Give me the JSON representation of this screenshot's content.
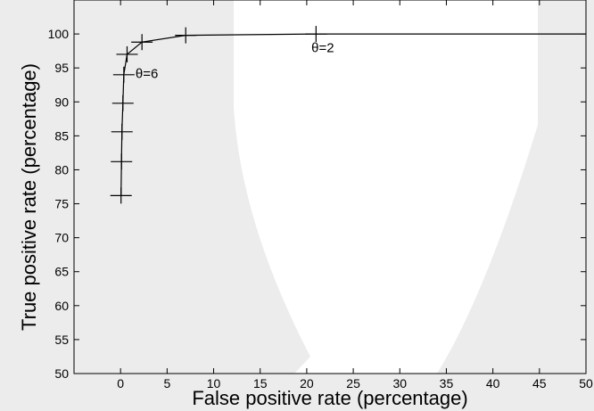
{
  "chart_data": {
    "type": "line",
    "title": "",
    "xlabel": "False positive rate (percentage)",
    "ylabel": "True positive rate (percentage)",
    "xlim": [
      -5,
      50
    ],
    "ylim": [
      50,
      105
    ],
    "x_ticks": [
      0,
      5,
      10,
      15,
      20,
      25,
      30,
      35,
      40,
      45,
      50
    ],
    "y_ticks": [
      50,
      55,
      60,
      65,
      70,
      75,
      80,
      85,
      90,
      95,
      100
    ],
    "grid": false,
    "legend": "none",
    "series": [
      {
        "x": [
          0.05,
          0.1,
          0.15,
          0.25,
          0.35,
          0.7,
          2.3,
          7.0,
          21.0,
          50.0
        ],
        "y": [
          76.2,
          81.2,
          85.6,
          89.8,
          94.0,
          97.0,
          98.8,
          99.8,
          100.0,
          100.0
        ],
        "markers": [
          true,
          true,
          true,
          true,
          true,
          true,
          true,
          true,
          true,
          false
        ]
      }
    ],
    "annotations": [
      {
        "text": "θ=6",
        "x": 1.6,
        "y": 93.5
      },
      {
        "text": "θ=2",
        "x": 20.5,
        "y": 97.3
      }
    ],
    "colors": {
      "line": "#000000",
      "plot_background": "#ffffff",
      "page_background": "#ececec"
    }
  }
}
